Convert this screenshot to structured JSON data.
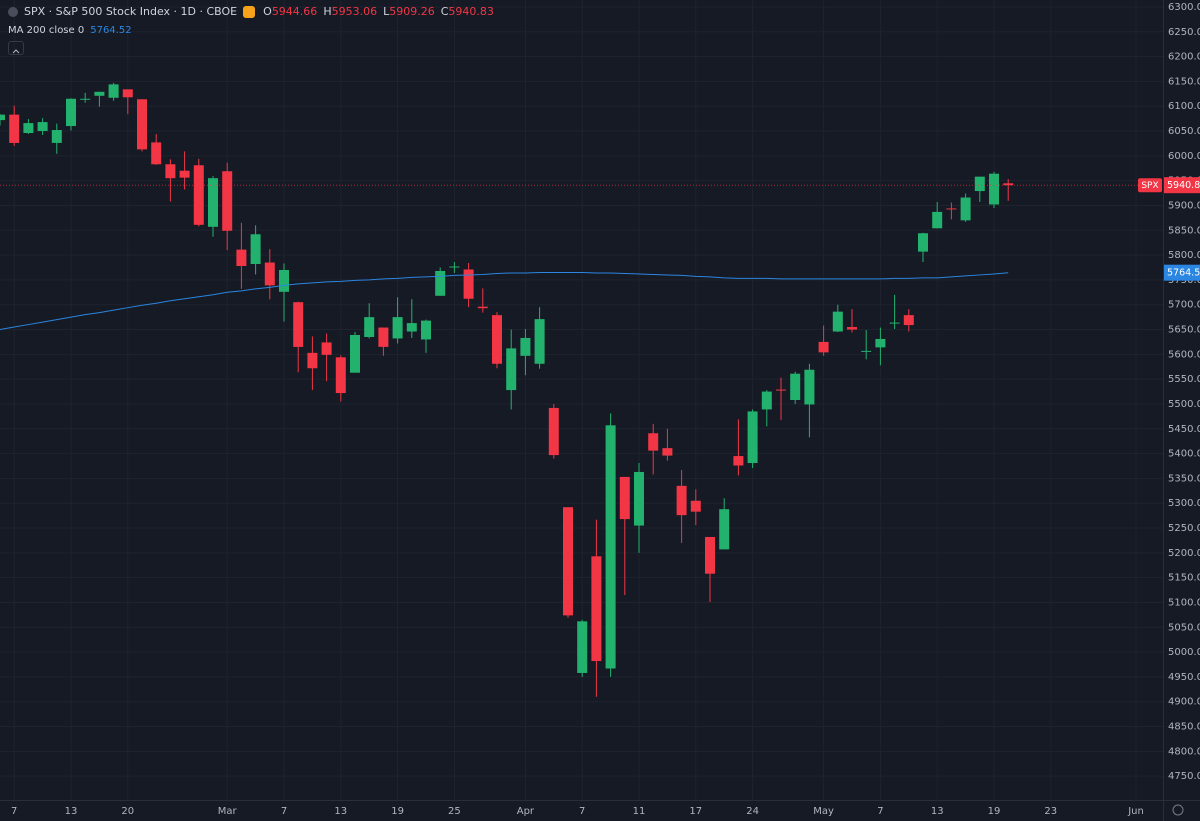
{
  "chart_data": {
    "type": "candlestick",
    "title": "SPX · S&P 500 Stock Index · 1D · CBOE",
    "ohlc_labels": [
      "O",
      "H",
      "L",
      "C"
    ],
    "categories": [
      null,
      "7",
      null,
      null,
      null,
      "13",
      null,
      null,
      null,
      "20",
      null,
      null,
      null,
      null,
      null,
      null,
      "Mar",
      null,
      null,
      null,
      "7",
      null,
      null,
      null,
      "13",
      null,
      null,
      null,
      "19",
      null,
      null,
      null,
      "25",
      null,
      null,
      null,
      null,
      "Apr",
      null,
      null,
      null,
      "7",
      null,
      null,
      null,
      "11",
      null,
      null,
      null,
      "17",
      null,
      null,
      null,
      "24",
      null,
      null,
      null,
      null,
      "May",
      null,
      null,
      null,
      "7",
      null,
      null,
      null,
      "13",
      null,
      null,
      null,
      "19",
      null,
      null,
      null,
      "23",
      null,
      null,
      null,
      null,
      null,
      "Jun"
    ],
    "series": [
      {
        "name": "SPX",
        "up_color": "#23b26d",
        "down_color": "#f23645",
        "open": [
          6072,
          6083,
          6046,
          6050,
          6026,
          6060,
          6115,
          6121,
          6117,
          6134,
          6114,
          6027,
          5983,
          5970,
          5981,
          5857,
          5969,
          5811,
          5782,
          5785,
          5726,
          5705,
          5603,
          5624,
          5594,
          5563,
          5635,
          5654,
          5632,
          5646,
          5630,
          5718,
          5776,
          5771,
          5696,
          5679,
          5528,
          5597,
          5581,
          5492,
          5292,
          4958,
          5193,
          4967,
          5353,
          5255,
          5441,
          5411,
          5335,
          5305,
          5232,
          5207,
          5395,
          5381,
          5489,
          5529,
          5508,
          5499,
          5625,
          5646,
          5655,
          5606,
          5614,
          5663,
          5679,
          5807,
          5854,
          5894,
          5870,
          5929,
          5902,
          5944.66,
          null,
          null,
          null,
          null,
          null,
          null,
          null,
          null,
          null
        ],
        "high": [
          6084,
          6101,
          6074,
          6076,
          6065,
          6116,
          6127,
          6129,
          6147,
          6134,
          6114,
          6044,
          5993,
          6009,
          5994,
          5959,
          5986,
          5865,
          5860,
          5812,
          5783,
          5706,
          5636,
          5642,
          5598,
          5645,
          5703,
          5654,
          5715,
          5711,
          5670,
          5775,
          5786,
          5784,
          5733,
          5685,
          5650,
          5651,
          5695,
          5500,
          5292,
          5065,
          5267,
          5481,
          5353,
          5381,
          5460,
          5450,
          5367,
          5328,
          5232,
          5310,
          5469,
          5489,
          5528,
          5553,
          5565,
          5581,
          5658,
          5700,
          5691,
          5649,
          5654,
          5720,
          5691,
          5845,
          5907,
          5906,
          5924,
          5958,
          5968,
          5953.06,
          null,
          null,
          null,
          null,
          null,
          null,
          null,
          null,
          null
        ],
        "low": [
          6061,
          6020,
          6044,
          6042,
          6004,
          6051,
          6107,
          6099,
          6111,
          6084,
          6009,
          5982,
          5908,
          5932,
          5858,
          5837,
          5810,
          5732,
          5761,
          5711,
          5666,
          5564,
          5528,
          5546,
          5505,
          5563,
          5632,
          5597,
          5622,
          5633,
          5603,
          5718,
          5764,
          5695,
          5684,
          5572,
          5489,
          5558,
          5571,
          5390,
          5069,
          4950,
          4910,
          4950,
          5115,
          5200,
          5358,
          5386,
          5220,
          5256,
          5101,
          5207,
          5356,
          5371,
          5455,
          5468,
          5500,
          5433,
          5597,
          5645,
          5644,
          5590,
          5578,
          5651,
          5646,
          5786,
          5854,
          5872,
          5867,
          5907,
          5895,
          5909.26,
          null,
          null,
          null,
          null,
          null,
          null,
          null,
          null,
          null
        ],
        "close": [
          6083,
          6026,
          6066,
          6068,
          6052,
          6115,
          6115,
          6129,
          6144,
          6118,
          6013,
          5983,
          5955,
          5956,
          5861,
          5955,
          5849,
          5778,
          5842,
          5739,
          5770,
          5615,
          5572,
          5599,
          5522,
          5639,
          5675,
          5615,
          5675,
          5663,
          5668,
          5768,
          5777,
          5712,
          5693,
          5581,
          5612,
          5633,
          5671,
          5397,
          5074,
          5062,
          4982,
          5457,
          5268,
          5363,
          5406,
          5396,
          5276,
          5283,
          5158,
          5288,
          5376,
          5485,
          5525,
          5528,
          5561,
          5569,
          5604,
          5686,
          5650,
          5607,
          5631,
          5664,
          5659,
          5844,
          5887,
          5892,
          5916,
          5958,
          5964,
          5940.83,
          null,
          null,
          null,
          null,
          null,
          null,
          null,
          null,
          null
        ]
      },
      {
        "name": "MA 200 close 0",
        "color": "#2a86e0",
        "values": [
          5650,
          5655,
          5660,
          5665,
          5670,
          5675,
          5680,
          5684,
          5689,
          5694,
          5699,
          5703,
          5708,
          5712,
          5716,
          5720,
          5725,
          5728,
          5732,
          5735,
          5739,
          5742,
          5744,
          5746,
          5747,
          5749,
          5750,
          5752,
          5753,
          5755,
          5756,
          5757,
          5759,
          5760,
          5761,
          5763,
          5764,
          5764,
          5765,
          5765,
          5765,
          5765,
          5764,
          5764,
          5763,
          5762,
          5761,
          5760,
          5759,
          5757,
          5756,
          5754,
          5753,
          5753,
          5753,
          5752,
          5752,
          5752,
          5752,
          5752,
          5752,
          5752,
          5752,
          5753,
          5753,
          5754,
          5754,
          5756,
          5758,
          5760,
          5762,
          5764.52,
          null,
          null,
          null,
          null,
          null,
          null,
          null,
          null,
          null
        ]
      }
    ],
    "ylim": [
      4702,
      6314
    ],
    "yticks": [
      {
        "value": 4750,
        "label": "4750.00"
      },
      {
        "value": 4800,
        "label": "4800.00"
      },
      {
        "value": 4850,
        "label": "4850.00"
      },
      {
        "value": 4900,
        "label": "4900.00"
      },
      {
        "value": 4950,
        "label": "4950.00"
      },
      {
        "value": 5000,
        "label": "5000.00"
      },
      {
        "value": 5050,
        "label": "5050.00"
      },
      {
        "value": 5100,
        "label": "5100.00"
      },
      {
        "value": 5150,
        "label": "5150.00"
      },
      {
        "value": 5200,
        "label": "5200.00"
      },
      {
        "value": 5250,
        "label": "5250.00"
      },
      {
        "value": 5300,
        "label": "5300.00"
      },
      {
        "value": 5350,
        "label": "5350.00"
      },
      {
        "value": 5400,
        "label": "5400.00"
      },
      {
        "value": 5450,
        "label": "5450.00"
      },
      {
        "value": 5500,
        "label": "5500.00"
      },
      {
        "value": 5550,
        "label": "5550.00"
      },
      {
        "value": 5600,
        "label": "5600.00"
      },
      {
        "value": 5650,
        "label": "5650.00"
      },
      {
        "value": 5700,
        "label": "5700.00"
      },
      {
        "value": 5750,
        "label": "5750.00"
      },
      {
        "value": 5800,
        "label": "5800.00"
      },
      {
        "value": 5850,
        "label": "5850.00"
      },
      {
        "value": 5900,
        "label": "5900.00"
      },
      {
        "value": 5950,
        "label": "5950.00"
      },
      {
        "value": 6000,
        "label": "6000.00"
      },
      {
        "value": 6050,
        "label": "6050.00"
      },
      {
        "value": 6100,
        "label": "6100.00"
      },
      {
        "value": 6150,
        "label": "6150.00"
      },
      {
        "value": 6200,
        "label": "6200.00"
      },
      {
        "value": 6250,
        "label": "6250.00"
      },
      {
        "value": 6300,
        "label": "6300.00"
      }
    ],
    "grid": true
  }
}
